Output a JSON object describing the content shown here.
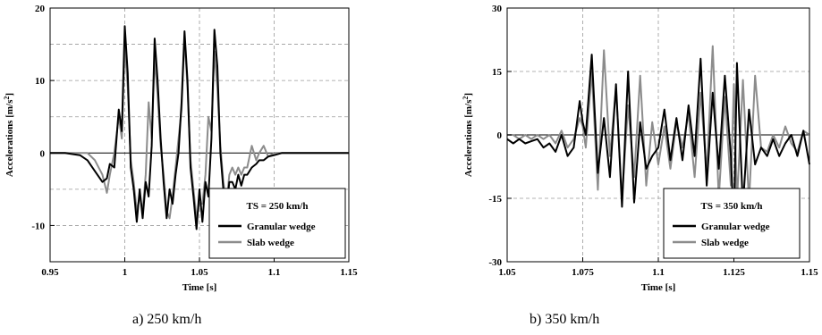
{
  "chart_data": [
    {
      "type": "line",
      "caption": "a) 250 km/h",
      "xlabel": "Time [s]",
      "ylabel_main": "Accelerations [m/s",
      "ylabel_sup": "2",
      "ylabel_end": "]",
      "xlim": [
        0.95,
        1.15
      ],
      "ylim": [
        -15,
        20
      ],
      "xticks": [
        0.95,
        1,
        1.05,
        1.1,
        1.15
      ],
      "xtick_labels": [
        "0.95",
        "1",
        "1.05",
        "1.1",
        "1.15"
      ],
      "yticks": [
        -10,
        0,
        10,
        20
      ],
      "ytick_labels": [
        "-10",
        "0",
        "10",
        "20"
      ],
      "grid": "dashed",
      "legend": {
        "placement": "bottom-right",
        "title": "TS = 250 km/h"
      },
      "series": [
        {
          "name": "Granular wedge",
          "color": "#000000",
          "x": [
            0.95,
            0.96,
            0.97,
            0.975,
            0.98,
            0.985,
            0.988,
            0.99,
            0.993,
            0.996,
            0.998,
            1.0,
            1.002,
            1.004,
            1.006,
            1.008,
            1.01,
            1.012,
            1.014,
            1.016,
            1.018,
            1.02,
            1.022,
            1.024,
            1.026,
            1.028,
            1.03,
            1.032,
            1.034,
            1.036,
            1.038,
            1.04,
            1.042,
            1.044,
            1.046,
            1.048,
            1.05,
            1.052,
            1.054,
            1.056,
            1.058,
            1.06,
            1.062,
            1.064,
            1.066,
            1.068,
            1.07,
            1.072,
            1.074,
            1.076,
            1.078,
            1.08,
            1.082,
            1.085,
            1.088,
            1.09,
            1.093,
            1.096,
            1.1,
            1.105,
            1.11,
            1.15
          ],
          "y": [
            0,
            0,
            -0.3,
            -1,
            -2.5,
            -4,
            -3.5,
            -1.5,
            -2,
            6,
            3,
            17.5,
            11,
            -2,
            -5,
            -9.5,
            -5,
            -9,
            -4,
            -6,
            1,
            15.8,
            10,
            2,
            -4,
            -9,
            -5,
            -7,
            -3,
            0,
            7,
            16.8,
            10,
            -2,
            -6,
            -10.5,
            -5,
            -9.5,
            -4,
            -6,
            2,
            17,
            12,
            0,
            -5,
            -8,
            -4,
            -4,
            -5,
            -3,
            -4.5,
            -3,
            -3,
            -2,
            -1.5,
            -1,
            -1,
            -0.5,
            -0.3,
            0,
            0,
            0
          ]
        },
        {
          "name": "Slab wedge",
          "color": "#8c8c8c",
          "x": [
            0.95,
            0.96,
            0.97,
            0.975,
            0.98,
            0.985,
            0.988,
            0.99,
            0.993,
            0.996,
            0.998,
            1.0,
            1.002,
            1.004,
            1.006,
            1.008,
            1.01,
            1.012,
            1.014,
            1.016,
            1.018,
            1.02,
            1.022,
            1.024,
            1.026,
            1.028,
            1.03,
            1.032,
            1.034,
            1.036,
            1.038,
            1.04,
            1.042,
            1.044,
            1.046,
            1.048,
            1.05,
            1.052,
            1.054,
            1.056,
            1.058,
            1.06,
            1.062,
            1.064,
            1.066,
            1.068,
            1.07,
            1.072,
            1.074,
            1.076,
            1.078,
            1.08,
            1.082,
            1.085,
            1.088,
            1.09,
            1.093,
            1.096,
            1.1,
            1.105,
            1.11,
            1.15
          ],
          "y": [
            0,
            0,
            0,
            0,
            -1,
            -3,
            -5.5,
            -3,
            0,
            5,
            2,
            15,
            9,
            -1,
            -4,
            -8,
            -6,
            -8,
            -3,
            7,
            2,
            13,
            8,
            1,
            -3,
            -8,
            -9,
            -6,
            -2,
            2,
            6,
            16,
            9,
            -1,
            -5,
            -9,
            -7,
            -7,
            -3,
            5,
            3,
            14,
            9,
            1,
            -4,
            -7,
            -3,
            -2,
            -3,
            -2,
            -3,
            -2,
            -2,
            1,
            -1,
            0,
            1,
            -0.5,
            0,
            0,
            0,
            0
          ]
        }
      ]
    },
    {
      "type": "line",
      "caption": "b) 350 km/h",
      "xlabel": "Time [s]",
      "ylabel_main": "Accelerations [m/s",
      "ylabel_sup": "2",
      "ylabel_end": "]",
      "xlim": [
        1.05,
        1.15
      ],
      "ylim": [
        -30,
        30
      ],
      "xticks": [
        1.05,
        1.075,
        1.1,
        1.125,
        1.15
      ],
      "xtick_labels": [
        "1.05",
        "1.075",
        "1.1",
        "1.125",
        "1.15"
      ],
      "yticks": [
        -30,
        -15,
        0,
        15,
        30
      ],
      "ytick_labels": [
        "-30",
        "-15",
        "0",
        "15",
        "30"
      ],
      "grid": "dashed",
      "legend": {
        "placement": "bottom-right",
        "title": "TS = 350 km/h"
      },
      "series": [
        {
          "name": "Granular wedge",
          "color": "#000000",
          "x": [
            1.05,
            1.052,
            1.054,
            1.056,
            1.058,
            1.06,
            1.062,
            1.064,
            1.066,
            1.068,
            1.07,
            1.072,
            1.074,
            1.075,
            1.076,
            1.078,
            1.08,
            1.082,
            1.084,
            1.086,
            1.088,
            1.09,
            1.092,
            1.094,
            1.096,
            1.098,
            1.1,
            1.102,
            1.104,
            1.106,
            1.108,
            1.11,
            1.112,
            1.114,
            1.116,
            1.118,
            1.12,
            1.122,
            1.124,
            1.125,
            1.126,
            1.128,
            1.13,
            1.132,
            1.134,
            1.136,
            1.138,
            1.14,
            1.142,
            1.144,
            1.146,
            1.148,
            1.15
          ],
          "y": [
            -1,
            -2,
            -1,
            -2,
            -1.5,
            -1,
            -3,
            -2,
            -4,
            0,
            -5,
            -3,
            8,
            3,
            0,
            19,
            -9,
            4,
            -10,
            12,
            -17,
            15,
            -16,
            3,
            -8,
            -5,
            -3,
            6,
            -6,
            4,
            -6,
            7,
            -5,
            18,
            -12,
            10,
            -8,
            14,
            -5,
            -22,
            17,
            -17,
            6,
            -7,
            -3,
            -5,
            -1,
            -5,
            -2,
            0,
            -5,
            1,
            -7
          ]
        },
        {
          "name": "Slab wedge",
          "color": "#8c8c8c",
          "x": [
            1.05,
            1.052,
            1.054,
            1.056,
            1.058,
            1.06,
            1.062,
            1.064,
            1.066,
            1.068,
            1.07,
            1.072,
            1.074,
            1.075,
            1.076,
            1.078,
            1.08,
            1.082,
            1.084,
            1.086,
            1.088,
            1.09,
            1.092,
            1.094,
            1.096,
            1.098,
            1.1,
            1.102,
            1.104,
            1.106,
            1.108,
            1.11,
            1.112,
            1.114,
            1.116,
            1.118,
            1.12,
            1.122,
            1.124,
            1.125,
            1.126,
            1.128,
            1.13,
            1.132,
            1.134,
            1.136,
            1.138,
            1.14,
            1.142,
            1.144,
            1.146,
            1.148,
            1.15
          ],
          "y": [
            0,
            0,
            -1,
            0,
            -1,
            0,
            -1,
            0,
            -2,
            1,
            -3,
            -1,
            4,
            2,
            -3,
            15,
            -13,
            20,
            -5,
            11,
            -15,
            7,
            -10,
            14,
            -12,
            3,
            -7,
            2,
            -8,
            3,
            -3,
            5,
            -10,
            10,
            -9,
            21,
            -15,
            9,
            -12,
            12,
            -16,
            13,
            -16,
            14,
            -3,
            -4,
            0,
            -3,
            2,
            -2,
            -4,
            1,
            0
          ]
        }
      ]
    }
  ]
}
